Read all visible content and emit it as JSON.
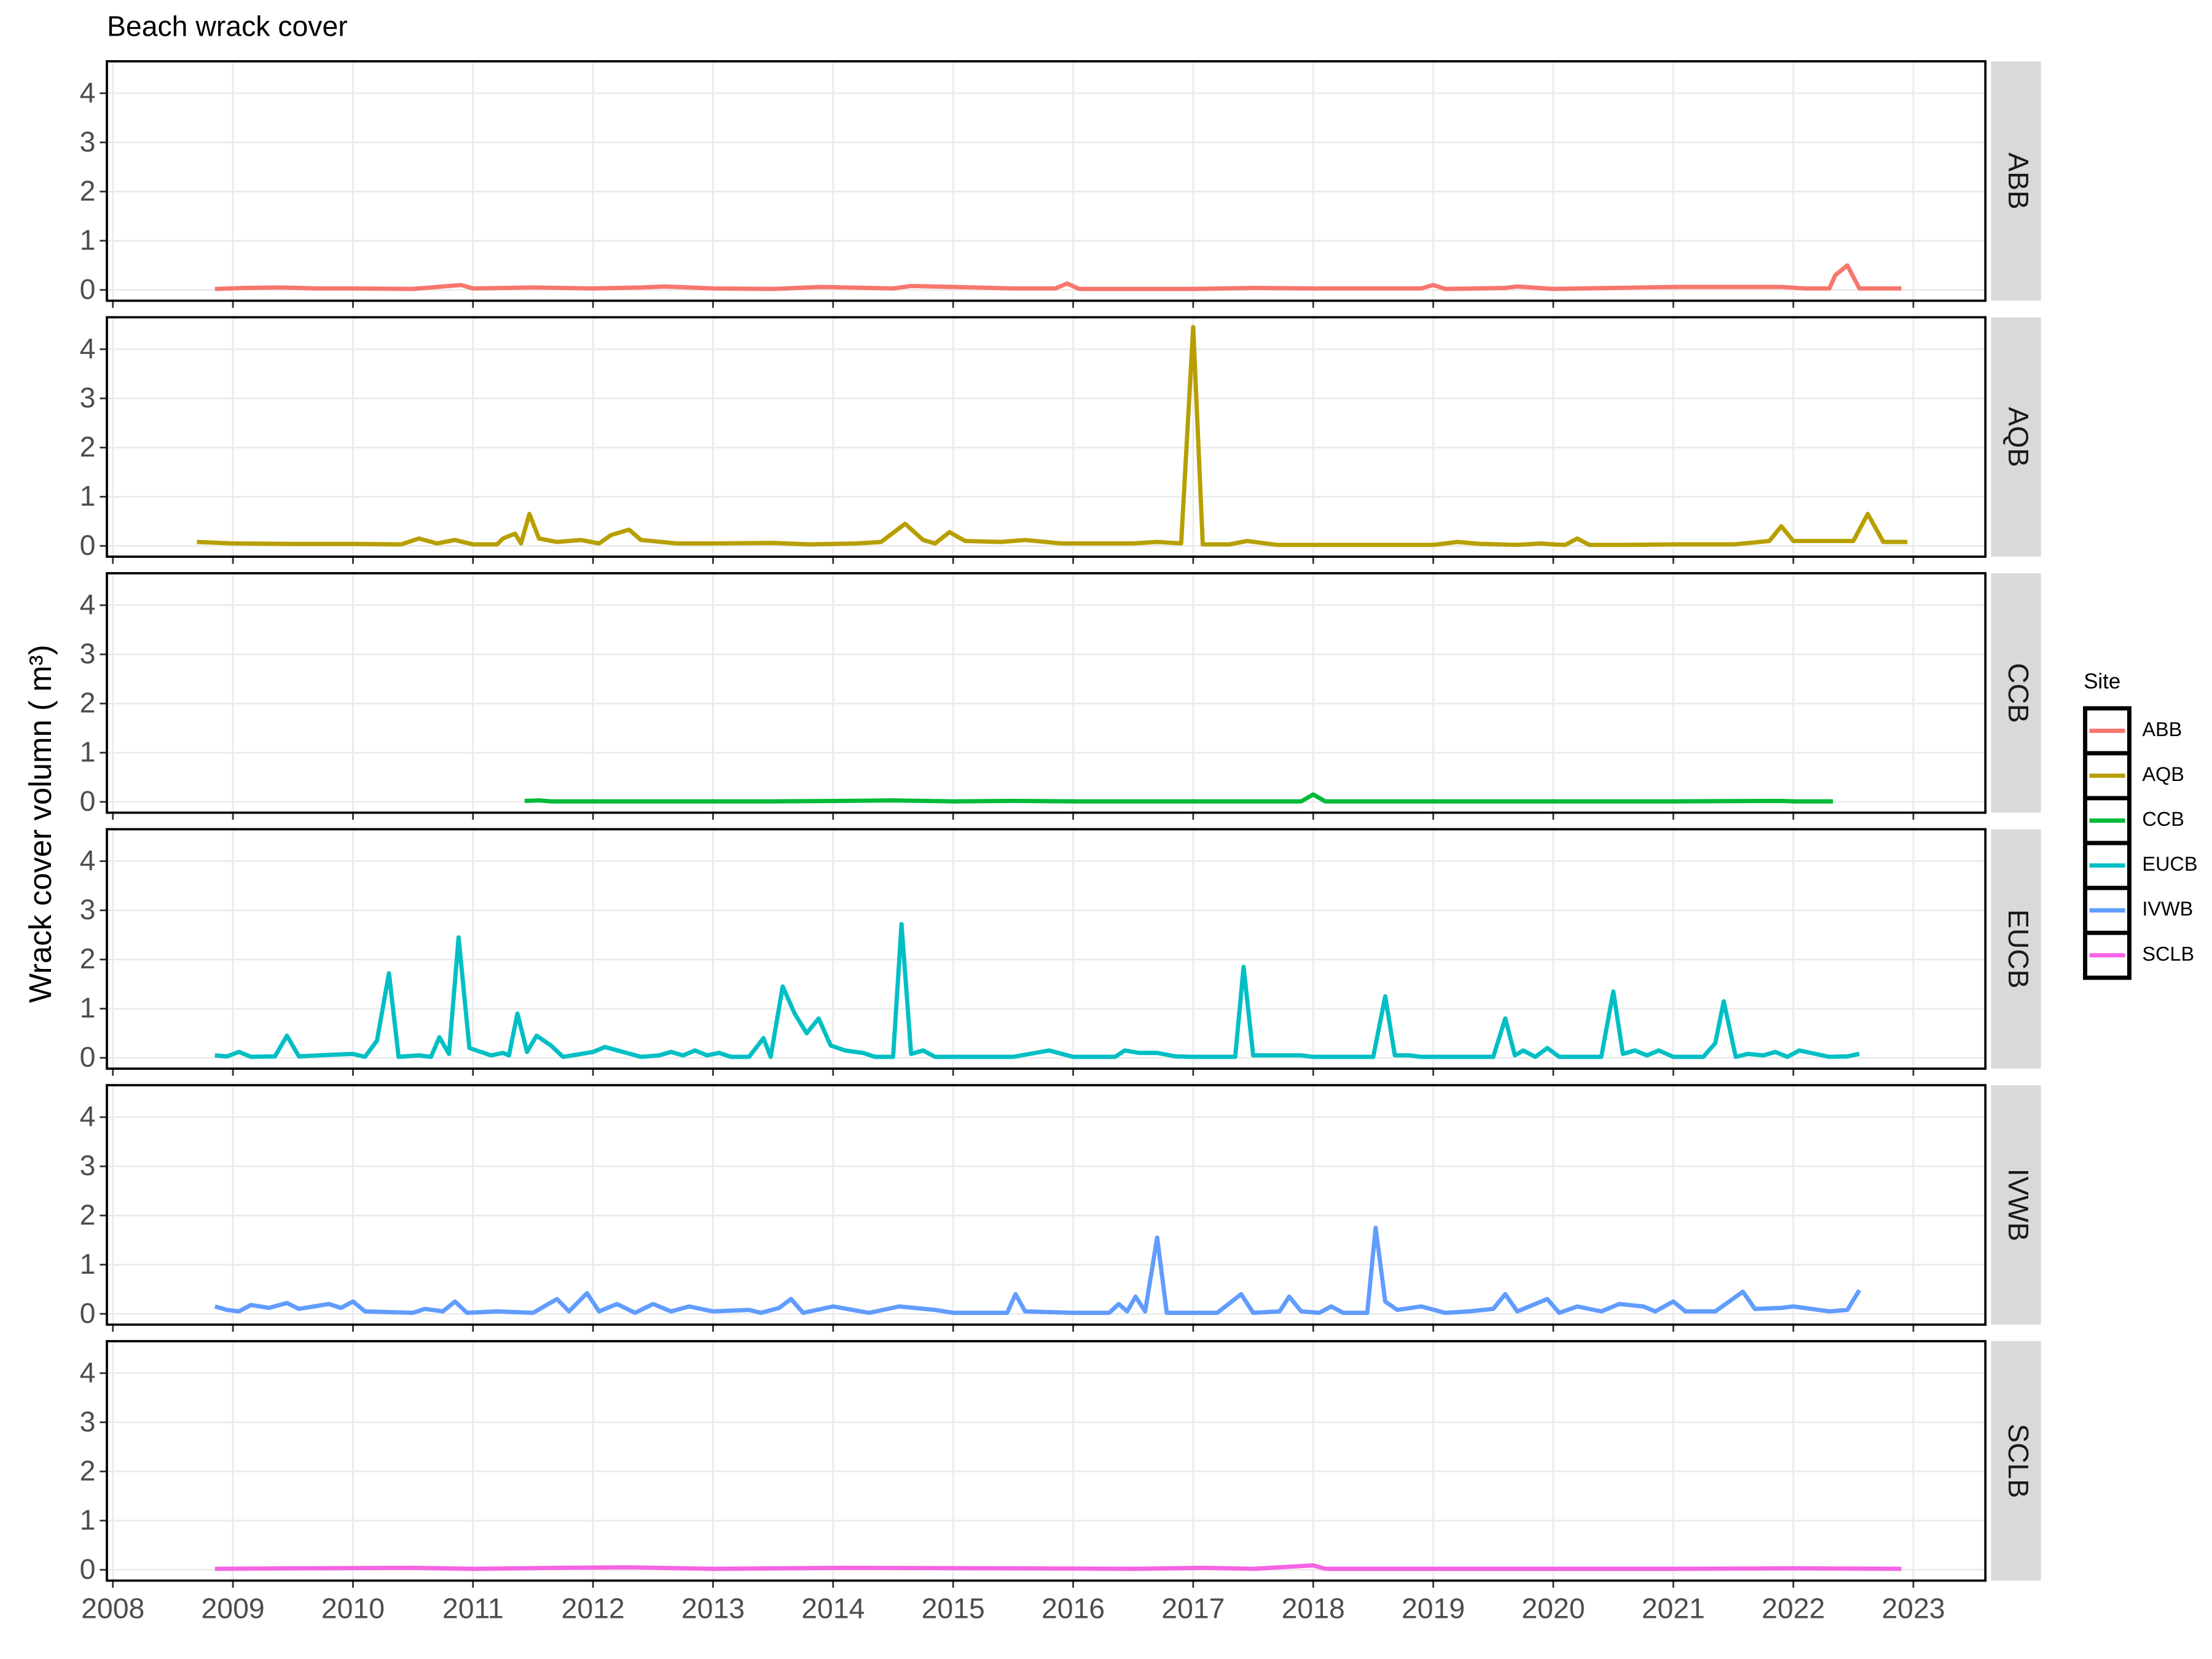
{
  "chart_data": {
    "type": "line",
    "title": "Beach wrack cover",
    "y_label": "Wrack cover volumn ( m³)",
    "legend_title": "Site",
    "legend": "right",
    "facets": true,
    "grid": true,
    "xlim": [
      2007.95,
      2023.6
    ],
    "xticks": [
      2008,
      2009,
      2010,
      2011,
      2012,
      2013,
      2014,
      2015,
      2016,
      2017,
      2018,
      2019,
      2020,
      2021,
      2022,
      2023
    ],
    "ylim": [
      -0.22,
      4.65
    ],
    "yticks": [
      0,
      1,
      2,
      3,
      4
    ],
    "series": [
      {
        "name": "ABB",
        "color": "#F8766D",
        "x": [
          2008.85,
          2009.1,
          2009.4,
          2009.7,
          2010.0,
          2010.5,
          2010.9,
          2011.0,
          2011.5,
          2012.0,
          2012.4,
          2012.6,
          2013.0,
          2013.5,
          2013.9,
          2014.5,
          2014.65,
          2015.0,
          2015.5,
          2015.85,
          2015.95,
          2016.05,
          2016.5,
          2017.0,
          2017.5,
          2018.0,
          2018.5,
          2018.9,
          2019.0,
          2019.1,
          2019.6,
          2019.7,
          2020.0,
          2020.5,
          2021.0,
          2021.5,
          2021.9,
          2022.1,
          2022.3,
          2022.35,
          2022.45,
          2022.55,
          2022.8,
          2022.9
        ],
        "values": [
          0.02,
          0.04,
          0.05,
          0.03,
          0.03,
          0.02,
          0.1,
          0.03,
          0.05,
          0.03,
          0.05,
          0.07,
          0.03,
          0.02,
          0.06,
          0.03,
          0.08,
          0.06,
          0.03,
          0.03,
          0.13,
          0.02,
          0.02,
          0.02,
          0.04,
          0.03,
          0.03,
          0.03,
          0.1,
          0.02,
          0.04,
          0.07,
          0.02,
          0.04,
          0.06,
          0.06,
          0.06,
          0.03,
          0.03,
          0.3,
          0.5,
          0.03,
          0.03,
          0.03
        ]
      },
      {
        "name": "AQB",
        "color": "#B79F00",
        "x": [
          2008.7,
          2009.0,
          2009.5,
          2010.0,
          2010.4,
          2010.55,
          2010.7,
          2010.85,
          2011.0,
          2011.2,
          2011.25,
          2011.35,
          2011.4,
          2011.47,
          2011.55,
          2011.7,
          2011.9,
          2012.05,
          2012.15,
          2012.3,
          2012.4,
          2012.7,
          2013.0,
          2013.5,
          2013.8,
          2014.2,
          2014.4,
          2014.6,
          2014.75,
          2014.85,
          2014.97,
          2015.1,
          2015.4,
          2015.6,
          2015.9,
          2016.5,
          2016.7,
          2016.9,
          2017.0,
          2017.08,
          2017.3,
          2017.45,
          2017.7,
          2018.0,
          2019.0,
          2019.2,
          2019.4,
          2019.7,
          2019.9,
          2020.0,
          2020.1,
          2020.2,
          2020.3,
          2020.6,
          2021.0,
          2021.5,
          2021.8,
          2021.9,
          2022.0,
          2022.2,
          2022.35,
          2022.5,
          2022.62,
          2022.75,
          2022.95
        ],
        "values": [
          0.08,
          0.05,
          0.04,
          0.04,
          0.03,
          0.15,
          0.05,
          0.12,
          0.03,
          0.03,
          0.15,
          0.25,
          0.05,
          0.65,
          0.15,
          0.08,
          0.12,
          0.05,
          0.22,
          0.33,
          0.12,
          0.05,
          0.05,
          0.06,
          0.03,
          0.05,
          0.08,
          0.45,
          0.12,
          0.05,
          0.28,
          0.1,
          0.08,
          0.12,
          0.05,
          0.05,
          0.08,
          0.05,
          4.45,
          0.03,
          0.03,
          0.1,
          0.02,
          0.02,
          0.02,
          0.08,
          0.04,
          0.02,
          0.05,
          0.03,
          0.02,
          0.15,
          0.02,
          0.02,
          0.03,
          0.03,
          0.1,
          0.4,
          0.1,
          0.1,
          0.1,
          0.1,
          0.65,
          0.08,
          0.08
        ]
      },
      {
        "name": "CCB",
        "color": "#00BA38",
        "x": [
          2011.43,
          2011.55,
          2011.65,
          2012.5,
          2013.5,
          2014.1,
          2014.5,
          2015.0,
          2015.5,
          2016.0,
          2017.0,
          2017.9,
          2018.0,
          2018.1,
          2019.0,
          2020.0,
          2021.0,
          2021.9,
          2022.0,
          2022.33
        ],
        "values": [
          0.02,
          0.03,
          0.01,
          0.01,
          0.01,
          0.02,
          0.03,
          0.01,
          0.02,
          0.01,
          0.01,
          0.01,
          0.15,
          0.01,
          0.01,
          0.01,
          0.01,
          0.02,
          0.01,
          0.01
        ]
      },
      {
        "name": "EUCB",
        "color": "#00BFC4",
        "x": [
          2008.85,
          2008.95,
          2009.05,
          2009.15,
          2009.35,
          2009.45,
          2009.55,
          2009.8,
          2010.0,
          2010.1,
          2010.2,
          2010.3,
          2010.38,
          2010.55,
          2010.65,
          2010.72,
          2010.8,
          2010.88,
          2010.97,
          2011.15,
          2011.25,
          2011.3,
          2011.37,
          2011.45,
          2011.53,
          2011.65,
          2011.75,
          2012.0,
          2012.1,
          2012.25,
          2012.4,
          2012.55,
          2012.65,
          2012.75,
          2012.85,
          2012.95,
          2013.05,
          2013.15,
          2013.3,
          2013.42,
          2013.48,
          2013.58,
          2013.68,
          2013.78,
          2013.88,
          2013.98,
          2014.1,
          2014.25,
          2014.35,
          2014.5,
          2014.57,
          2014.65,
          2014.75,
          2014.85,
          2015.5,
          2015.8,
          2016.0,
          2016.35,
          2016.43,
          2016.55,
          2016.7,
          2016.85,
          2017.0,
          2017.35,
          2017.42,
          2017.5,
          2017.9,
          2018.0,
          2018.5,
          2018.6,
          2018.68,
          2018.8,
          2018.9,
          2019.5,
          2019.6,
          2019.68,
          2019.75,
          2019.85,
          2019.95,
          2020.05,
          2020.4,
          2020.5,
          2020.58,
          2020.68,
          2020.78,
          2020.88,
          2021.0,
          2021.25,
          2021.35,
          2021.42,
          2021.52,
          2021.62,
          2021.75,
          2021.85,
          2021.95,
          2022.05,
          2022.3,
          2022.45,
          2022.55
        ],
        "values": [
          0.05,
          0.03,
          0.12,
          0.02,
          0.03,
          0.45,
          0.03,
          0.06,
          0.08,
          0.02,
          0.35,
          1.72,
          0.02,
          0.05,
          0.02,
          0.42,
          0.08,
          2.45,
          0.2,
          0.05,
          0.1,
          0.05,
          0.9,
          0.12,
          0.45,
          0.25,
          0.02,
          0.12,
          0.22,
          0.12,
          0.02,
          0.05,
          0.12,
          0.05,
          0.15,
          0.05,
          0.1,
          0.02,
          0.02,
          0.4,
          0.02,
          1.45,
          0.9,
          0.5,
          0.8,
          0.25,
          0.15,
          0.1,
          0.02,
          0.02,
          2.72,
          0.08,
          0.15,
          0.02,
          0.02,
          0.15,
          0.02,
          0.02,
          0.15,
          0.1,
          0.1,
          0.03,
          0.02,
          0.02,
          1.85,
          0.05,
          0.05,
          0.02,
          0.02,
          1.25,
          0.05,
          0.05,
          0.02,
          0.02,
          0.8,
          0.05,
          0.15,
          0.02,
          0.2,
          0.02,
          0.02,
          1.35,
          0.08,
          0.15,
          0.05,
          0.15,
          0.02,
          0.02,
          0.3,
          1.15,
          0.02,
          0.08,
          0.05,
          0.12,
          0.02,
          0.15,
          0.02,
          0.03,
          0.08
        ]
      },
      {
        "name": "IVWB",
        "color": "#619CFF",
        "x": [
          2008.85,
          2008.95,
          2009.05,
          2009.15,
          2009.3,
          2009.45,
          2009.55,
          2009.8,
          2009.9,
          2010.0,
          2010.1,
          2010.5,
          2010.6,
          2010.75,
          2010.85,
          2010.95,
          2011.2,
          2011.5,
          2011.7,
          2011.8,
          2011.95,
          2012.05,
          2012.2,
          2012.35,
          2012.5,
          2012.65,
          2012.8,
          2013.0,
          2013.3,
          2013.4,
          2013.55,
          2013.65,
          2013.75,
          2014.0,
          2014.3,
          2014.55,
          2014.85,
          2015.0,
          2015.45,
          2015.52,
          2015.6,
          2016.0,
          2016.3,
          2016.38,
          2016.45,
          2016.52,
          2016.6,
          2016.7,
          2016.78,
          2017.2,
          2017.4,
          2017.5,
          2017.72,
          2017.8,
          2017.9,
          2018.05,
          2018.15,
          2018.25,
          2018.45,
          2018.52,
          2018.6,
          2018.7,
          2018.9,
          2019.1,
          2019.3,
          2019.5,
          2019.6,
          2019.7,
          2019.95,
          2020.05,
          2020.2,
          2020.4,
          2020.55,
          2020.75,
          2020.85,
          2021.0,
          2021.1,
          2021.35,
          2021.58,
          2021.68,
          2021.9,
          2022.0,
          2022.3,
          2022.45,
          2022.55
        ],
        "values": [
          0.15,
          0.08,
          0.05,
          0.18,
          0.12,
          0.22,
          0.1,
          0.2,
          0.12,
          0.25,
          0.05,
          0.02,
          0.1,
          0.05,
          0.25,
          0.02,
          0.05,
          0.02,
          0.3,
          0.05,
          0.42,
          0.05,
          0.2,
          0.02,
          0.2,
          0.05,
          0.15,
          0.05,
          0.08,
          0.02,
          0.12,
          0.3,
          0.02,
          0.15,
          0.02,
          0.15,
          0.08,
          0.02,
          0.02,
          0.4,
          0.05,
          0.02,
          0.02,
          0.2,
          0.05,
          0.35,
          0.05,
          1.55,
          0.02,
          0.02,
          0.4,
          0.02,
          0.05,
          0.35,
          0.05,
          0.02,
          0.15,
          0.02,
          0.02,
          1.75,
          0.25,
          0.08,
          0.15,
          0.02,
          0.05,
          0.1,
          0.4,
          0.05,
          0.3,
          0.02,
          0.15,
          0.05,
          0.2,
          0.15,
          0.05,
          0.25,
          0.05,
          0.05,
          0.45,
          0.1,
          0.12,
          0.15,
          0.05,
          0.08,
          0.48
        ]
      },
      {
        "name": "SCLB",
        "color": "#F564E3",
        "x": [
          2008.85,
          2009.5,
          2010.5,
          2011.0,
          2011.7,
          2012.3,
          2013.0,
          2014.1,
          2015.5,
          2016.5,
          2017.1,
          2017.5,
          2018.0,
          2018.1,
          2019.0,
          2020.0,
          2021.0,
          2022.0,
          2022.9
        ],
        "values": [
          0.02,
          0.03,
          0.04,
          0.02,
          0.04,
          0.05,
          0.02,
          0.04,
          0.03,
          0.02,
          0.04,
          0.02,
          0.09,
          0.02,
          0.02,
          0.02,
          0.02,
          0.03,
          0.02
        ]
      }
    ]
  }
}
